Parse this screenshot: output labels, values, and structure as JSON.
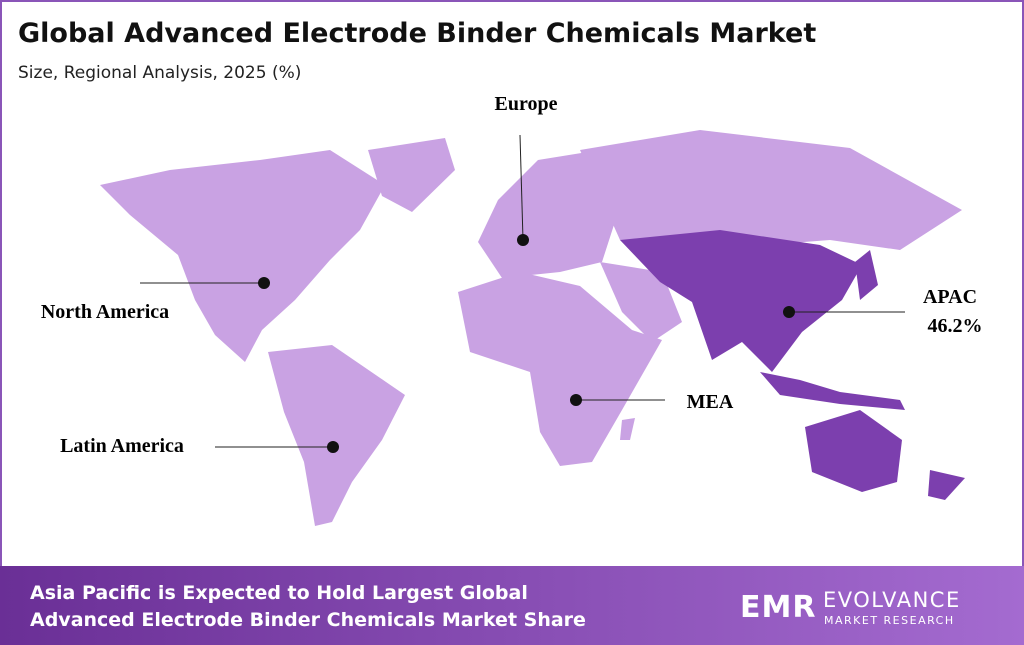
{
  "header": {
    "title": "Global Advanced Electrode Binder Chemicals Market",
    "subtitle": "Size, Regional Analysis, 2025 (%)"
  },
  "regions": [
    {
      "name": "Europe"
    },
    {
      "name": "North America"
    },
    {
      "name": "Latin America"
    },
    {
      "name": "MEA"
    },
    {
      "name": "APAC",
      "value": 46.2,
      "value_label": "46.2%"
    }
  ],
  "footer": {
    "lines": [
      "Asia Pacific is Expected to Hold Largest Global",
      "Advanced Electrode Binder Chemicals Market Share"
    ]
  },
  "logo": {
    "mark": "EMR",
    "name": "EVOLVANCE",
    "tagline": "MARKET RESEARCH"
  }
}
